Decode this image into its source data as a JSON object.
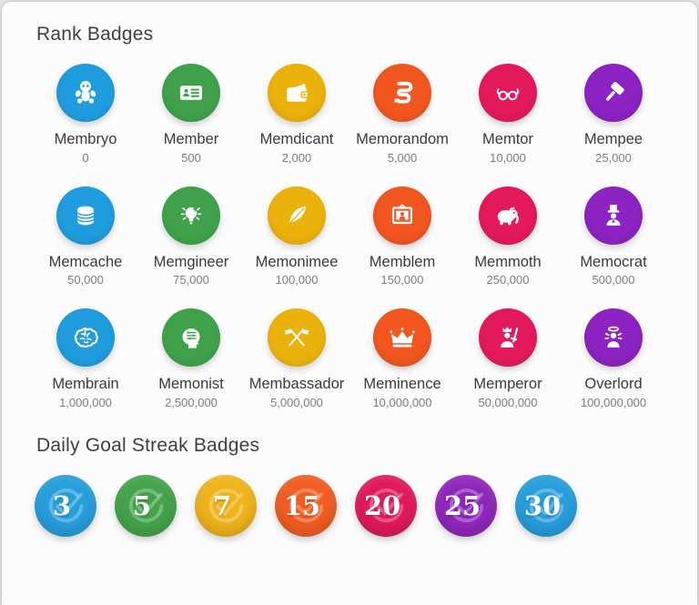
{
  "rank_section": {
    "title": "Rank Badges",
    "badges": [
      {
        "name": "Membryo",
        "points": "0",
        "color": "#1f9ddf",
        "icon": "baby-icon"
      },
      {
        "name": "Member",
        "points": "500",
        "color": "#3fa24b",
        "icon": "id-card-icon"
      },
      {
        "name": "Memdicant",
        "points": "2,000",
        "color": "#ecb20c",
        "icon": "wallet-icon"
      },
      {
        "name": "Memorandom",
        "points": "5,000",
        "color": "#f1571f",
        "icon": "scroll-icon"
      },
      {
        "name": "Memtor",
        "points": "10,000",
        "color": "#e4195c",
        "icon": "glasses-icon"
      },
      {
        "name": "Mempee",
        "points": "25,000",
        "color": "#8d23c2",
        "icon": "gavel-icon"
      },
      {
        "name": "Memcache",
        "points": "50,000",
        "color": "#1f9ddf",
        "icon": "database-icon"
      },
      {
        "name": "Memgineer",
        "points": "75,000",
        "color": "#3fa24b",
        "icon": "lightbulb-icon"
      },
      {
        "name": "Memonimee",
        "points": "100,000",
        "color": "#ecb20c",
        "icon": "feather-icon"
      },
      {
        "name": "Memblem",
        "points": "150,000",
        "color": "#f1571f",
        "icon": "portrait-icon"
      },
      {
        "name": "Memmoth",
        "points": "250,000",
        "color": "#e4195c",
        "icon": "mammoth-icon"
      },
      {
        "name": "Memocrat",
        "points": "500,000",
        "color": "#8d23c2",
        "icon": "top-hat-icon"
      },
      {
        "name": "Membrain",
        "points": "1,000,000",
        "color": "#1f9ddf",
        "icon": "brain-icon"
      },
      {
        "name": "Memonist",
        "points": "2,500,000",
        "color": "#3fa24b",
        "icon": "thinker-icon"
      },
      {
        "name": "Membassador",
        "points": "5,000,000",
        "color": "#ecb20c",
        "icon": "flags-icon"
      },
      {
        "name": "Meminence",
        "points": "10,000,000",
        "color": "#f1571f",
        "icon": "crown-icon"
      },
      {
        "name": "Memperor",
        "points": "50,000,000",
        "color": "#e4195c",
        "icon": "emperor-icon"
      },
      {
        "name": "Overlord",
        "points": "100,000,000",
        "color": "#8d23c2",
        "icon": "overlord-icon"
      }
    ]
  },
  "streak_section": {
    "title": "Daily Goal Streak Badges",
    "badges": [
      {
        "value": "3",
        "color": "#279fdc",
        "icon": "check-circle-icon"
      },
      {
        "value": "5",
        "color": "#45a34c",
        "icon": "check-circle-icon"
      },
      {
        "value": "7",
        "color": "#efb41c",
        "icon": "check-circle-icon"
      },
      {
        "value": "15",
        "color": "#f25d22",
        "icon": "check-circle-icon"
      },
      {
        "value": "20",
        "color": "#e01a5e",
        "icon": "check-circle-icon"
      },
      {
        "value": "25",
        "color": "#9027bd",
        "icon": "check-circle-icon"
      },
      {
        "value": "30",
        "color": "#279fdc",
        "icon": "check-circle-icon"
      }
    ]
  }
}
